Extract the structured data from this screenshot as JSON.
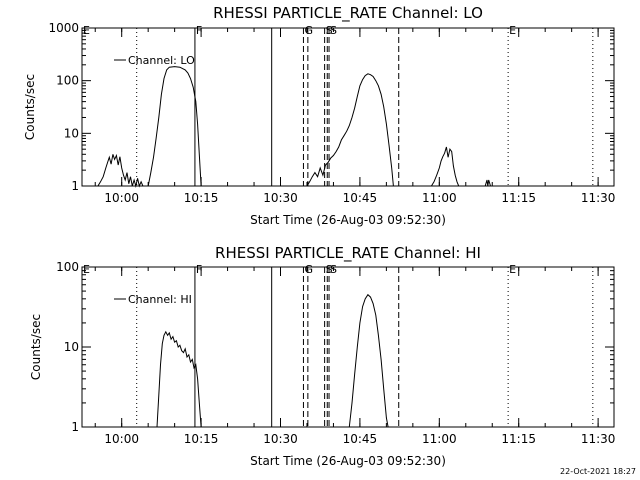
{
  "timestamp": "22-Oct-2021 18:27",
  "colors": {
    "background": "#ffffff",
    "foreground": "#000000"
  },
  "chart_data": [
    {
      "type": "line",
      "title": "RHESSI PARTICLE_RATE Channel: LO",
      "xlabel": "Start Time (26-Aug-03 09:52:30)",
      "ylabel": "Counts/sec",
      "y_scale": "log",
      "ylim": [
        1,
        1000
      ],
      "xlim": [
        "09:52:30",
        "11:33:00"
      ],
      "y_ticks": [
        {
          "value": 1,
          "label": "1"
        },
        {
          "value": 10,
          "label": "10"
        },
        {
          "value": 100,
          "label": "100"
        },
        {
          "value": 1000,
          "label": "1000"
        }
      ],
      "x_ticks": [
        {
          "value": "10:00",
          "label": "10:00"
        },
        {
          "value": "10:15",
          "label": "10:15"
        },
        {
          "value": "10:30",
          "label": "10:30"
        },
        {
          "value": "10:45",
          "label": "10:45"
        },
        {
          "value": "11:00",
          "label": "11:00"
        },
        {
          "value": "11:15",
          "label": "11:15"
        },
        {
          "value": "11:30",
          "label": "11:30"
        }
      ],
      "legend": {
        "label": "Channel: LO",
        "position": "top-left"
      },
      "vertical_markers": [
        {
          "time": "09:52:30",
          "style": "dotted",
          "flag": "E"
        },
        {
          "time": "10:02:50",
          "style": "dotted",
          "flag": ""
        },
        {
          "time": "10:13:50",
          "style": "solid",
          "flag": "F"
        },
        {
          "time": "10:28:20",
          "style": "solid",
          "flag": ""
        },
        {
          "time": "10:34:20",
          "style": "dashed",
          "flag": "G"
        },
        {
          "time": "10:35:10",
          "style": "dashed",
          "flag": ""
        },
        {
          "time": "10:38:20",
          "style": "dashed",
          "flag": "S"
        },
        {
          "time": "10:38:50",
          "style": "dashed",
          "flag": ""
        },
        {
          "time": "10:39:10",
          "style": "dashed",
          "flag": "S"
        },
        {
          "time": "10:52:20",
          "style": "dashed",
          "flag": ""
        },
        {
          "time": "11:13:00",
          "style": "dotted",
          "flag": "E"
        },
        {
          "time": "11:29:00",
          "style": "dotted",
          "flag": ""
        }
      ],
      "series": [
        {
          "name": "Channel: LO",
          "segments": [
            [
              [
                "09:55:30",
                1
              ],
              [
                "09:56:00",
                1.2
              ],
              [
                "09:56:30",
                1.5
              ],
              [
                "09:57:00",
                2.2
              ],
              [
                "09:57:20",
                2.8
              ],
              [
                "09:57:40",
                3.5
              ],
              [
                "09:58:00",
                2.6
              ],
              [
                "09:58:20",
                4
              ],
              [
                "09:58:40",
                3.2
              ],
              [
                "09:59:00",
                3.8
              ],
              [
                "09:59:20",
                2.5
              ],
              [
                "09:59:40",
                3.6
              ],
              [
                "10:00:00",
                2.2
              ],
              [
                "10:00:20",
                1.6
              ],
              [
                "10:00:40",
                1.3
              ],
              [
                "10:01:00",
                1.8
              ],
              [
                "10:01:20",
                1.1
              ],
              [
                "10:01:40",
                1.5
              ],
              [
                "10:02:00",
                1.0
              ],
              [
                "10:02:20",
                1.3
              ],
              [
                "10:02:40",
                1.0
              ],
              [
                "10:03:00",
                1.4
              ],
              [
                "10:03:20",
                1.0
              ],
              [
                "10:03:40",
                1.2
              ],
              [
                "10:04:00",
                1.0
              ]
            ],
            [
              [
                "10:05:00",
                1
              ],
              [
                "10:05:30",
                1.8
              ],
              [
                "10:06:00",
                3.5
              ],
              [
                "10:06:30",
                8
              ],
              [
                "10:07:00",
                20
              ],
              [
                "10:07:30",
                55
              ],
              [
                "10:08:00",
                110
              ],
              [
                "10:08:30",
                160
              ],
              [
                "10:09:00",
                180
              ],
              [
                "10:10:00",
                185
              ],
              [
                "10:11:00",
                180
              ],
              [
                "10:12:00",
                160
              ],
              [
                "10:12:30",
                140
              ],
              [
                "10:13:00",
                110
              ],
              [
                "10:13:30",
                75
              ],
              [
                "10:14:00",
                40
              ],
              [
                "10:14:20",
                15
              ],
              [
                "10:14:40",
                4
              ],
              [
                "10:15:00",
                1
              ]
            ],
            [
              [
                "10:35:00",
                1
              ],
              [
                "10:35:30",
                1.2
              ],
              [
                "10:36:00",
                1.5
              ],
              [
                "10:36:30",
                1.8
              ],
              [
                "10:37:00",
                1.5
              ],
              [
                "10:37:30",
                2.2
              ],
              [
                "10:38:00",
                1.6
              ],
              [
                "10:38:30",
                2.5
              ],
              [
                "10:39:00",
                2.8
              ],
              [
                "10:39:30",
                3.4
              ],
              [
                "10:40:00",
                3.8
              ],
              [
                "10:40:30",
                4.5
              ],
              [
                "10:41:00",
                5.5
              ],
              [
                "10:41:30",
                7.5
              ],
              [
                "10:42:00",
                9
              ],
              [
                "10:42:30",
                11
              ],
              [
                "10:43:00",
                14
              ],
              [
                "10:43:30",
                20
              ],
              [
                "10:44:00",
                30
              ],
              [
                "10:44:30",
                50
              ],
              [
                "10:45:00",
                80
              ],
              [
                "10:45:30",
                105
              ],
              [
                "10:46:00",
                125
              ],
              [
                "10:46:30",
                135
              ],
              [
                "10:47:00",
                130
              ],
              [
                "10:47:30",
                120
              ],
              [
                "10:48:00",
                100
              ],
              [
                "10:48:30",
                80
              ],
              [
                "10:49:00",
                55
              ],
              [
                "10:49:30",
                32
              ],
              [
                "10:50:00",
                15
              ],
              [
                "10:50:30",
                6
              ],
              [
                "10:51:00",
                2.2
              ],
              [
                "10:51:20",
                1
              ]
            ],
            [
              [
                "10:58:30",
                1
              ],
              [
                "10:59:00",
                1.2
              ],
              [
                "10:59:30",
                1.6
              ],
              [
                "11:00:00",
                2.2
              ],
              [
                "11:00:20",
                3
              ],
              [
                "11:00:40",
                3.6
              ],
              [
                "11:01:00",
                4.2
              ],
              [
                "11:01:20",
                5.5
              ],
              [
                "11:01:40",
                3.5
              ],
              [
                "11:02:00",
                5
              ],
              [
                "11:02:20",
                4.5
              ],
              [
                "11:02:40",
                2.4
              ],
              [
                "11:03:00",
                1.6
              ],
              [
                "11:03:20",
                1.2
              ],
              [
                "11:03:40",
                1
              ]
            ],
            [
              [
                "11:08:40",
                1
              ],
              [
                "11:09:00",
                1.3
              ],
              [
                "11:09:10",
                1
              ],
              [
                "11:09:20",
                1.3
              ],
              [
                "11:09:40",
                1
              ]
            ]
          ]
        }
      ]
    },
    {
      "type": "line",
      "title": "RHESSI PARTICLE_RATE Channel: HI",
      "xlabel": "Start Time (26-Aug-03 09:52:30)",
      "ylabel": "Counts/sec",
      "y_scale": "log",
      "ylim": [
        1,
        100
      ],
      "xlim": [
        "09:52:30",
        "11:33:00"
      ],
      "y_ticks": [
        {
          "value": 1,
          "label": "1"
        },
        {
          "value": 10,
          "label": "10"
        },
        {
          "value": 100,
          "label": "100"
        }
      ],
      "x_ticks": [
        {
          "value": "10:00",
          "label": "10:00"
        },
        {
          "value": "10:15",
          "label": "10:15"
        },
        {
          "value": "10:30",
          "label": "10:30"
        },
        {
          "value": "10:45",
          "label": "10:45"
        },
        {
          "value": "11:00",
          "label": "11:00"
        },
        {
          "value": "11:15",
          "label": "11:15"
        },
        {
          "value": "11:30",
          "label": "11:30"
        }
      ],
      "legend": {
        "label": "Channel: HI",
        "position": "top-left"
      },
      "vertical_markers": [
        {
          "time": "09:52:30",
          "style": "dotted",
          "flag": "E"
        },
        {
          "time": "10:02:50",
          "style": "dotted",
          "flag": ""
        },
        {
          "time": "10:13:50",
          "style": "solid",
          "flag": "F"
        },
        {
          "time": "10:28:20",
          "style": "solid",
          "flag": ""
        },
        {
          "time": "10:34:20",
          "style": "dashed",
          "flag": "G"
        },
        {
          "time": "10:35:10",
          "style": "dashed",
          "flag": ""
        },
        {
          "time": "10:38:20",
          "style": "dashed",
          "flag": "S"
        },
        {
          "time": "10:38:50",
          "style": "dashed",
          "flag": ""
        },
        {
          "time": "10:39:10",
          "style": "dashed",
          "flag": "S"
        },
        {
          "time": "10:52:20",
          "style": "dashed",
          "flag": ""
        },
        {
          "time": "11:13:00",
          "style": "dotted",
          "flag": "E"
        },
        {
          "time": "11:29:00",
          "style": "dotted",
          "flag": ""
        }
      ],
      "series": [
        {
          "name": "Channel: HI",
          "segments": [
            [
              [
                "10:06:40",
                1
              ],
              [
                "10:07:00",
                2.5
              ],
              [
                "10:07:20",
                6
              ],
              [
                "10:07:40",
                11
              ],
              [
                "10:08:00",
                14
              ],
              [
                "10:08:20",
                15.5
              ],
              [
                "10:08:40",
                14
              ],
              [
                "10:09:00",
                15
              ],
              [
                "10:09:20",
                12.5
              ],
              [
                "10:09:40",
                13.5
              ],
              [
                "10:10:00",
                11.5
              ],
              [
                "10:10:20",
                12
              ],
              [
                "10:10:40",
                10
              ],
              [
                "10:11:00",
                10.5
              ],
              [
                "10:11:20",
                9
              ],
              [
                "10:11:40",
                8.5
              ],
              [
                "10:12:00",
                9.5
              ],
              [
                "10:12:20",
                7.5
              ],
              [
                "10:12:40",
                8
              ],
              [
                "10:13:00",
                6.5
              ],
              [
                "10:13:20",
                7
              ],
              [
                "10:13:40",
                5.5
              ],
              [
                "10:14:00",
                6
              ],
              [
                "10:14:20",
                4
              ],
              [
                "10:14:40",
                2
              ],
              [
                "10:15:00",
                1
              ]
            ],
            [
              [
                "10:43:00",
                1
              ],
              [
                "10:43:30",
                2
              ],
              [
                "10:44:00",
                4.5
              ],
              [
                "10:44:30",
                10
              ],
              [
                "10:45:00",
                20
              ],
              [
                "10:45:30",
                32
              ],
              [
                "10:46:00",
                40
              ],
              [
                "10:46:30",
                45
              ],
              [
                "10:47:00",
                42
              ],
              [
                "10:47:30",
                35
              ],
              [
                "10:48:00",
                25
              ],
              [
                "10:48:30",
                14
              ],
              [
                "10:49:00",
                7
              ],
              [
                "10:49:30",
                3
              ],
              [
                "10:50:00",
                1.3
              ],
              [
                "10:50:20",
                1
              ]
            ]
          ]
        }
      ]
    }
  ]
}
